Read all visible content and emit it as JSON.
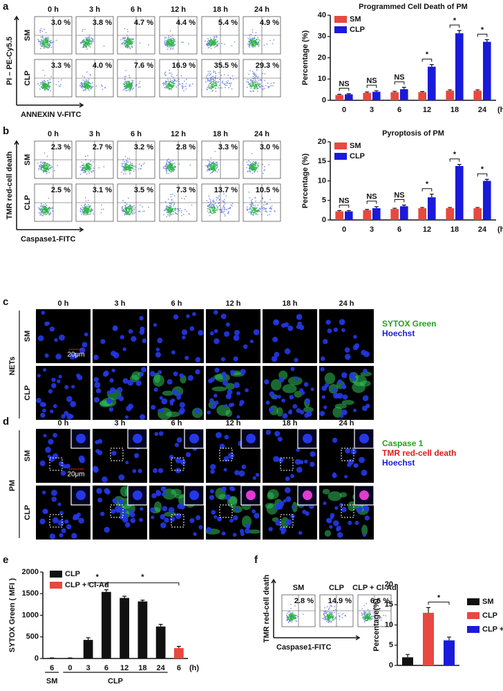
{
  "panels": {
    "a": {
      "letter": "a",
      "times": [
        "0 h",
        "3 h",
        "6 h",
        "12 h",
        "18 h",
        "24 h"
      ],
      "rows": [
        "SM",
        "CLP"
      ],
      "percents": [
        [
          "3.0 %",
          "3.8 %",
          "4.7 %",
          "4.4 %",
          "5.4 %",
          "4.9 %"
        ],
        [
          "3.3 %",
          "4.0 %",
          "7.6 %",
          "16.9 %",
          "35.5 %",
          "29.3 %"
        ]
      ],
      "y_axis": "PI – PE-Cy5.5",
      "x_axis": "ANNEXIN V-FITC"
    },
    "b": {
      "letter": "b",
      "times": [
        "0 h",
        "3 h",
        "6 h",
        "12 h",
        "18 h",
        "24 h"
      ],
      "rows": [
        "SM",
        "CLP"
      ],
      "percents": [
        [
          "2.3 %",
          "2.7 %",
          "3.2 %",
          "2.8 %",
          "3.3 %",
          "3.0 %"
        ],
        [
          "2.5 %",
          "3.1 %",
          "3.5 %",
          "7.3 %",
          "13.7 %",
          "10.5 %"
        ]
      ],
      "y_axis": "TMR red-cell death",
      "x_axis": "Caspase1-FITC"
    },
    "c": {
      "letter": "c",
      "times": [
        "0 h",
        "3 h",
        "6 h",
        "12 h",
        "18 h",
        "24 h"
      ],
      "rows": [
        "SM",
        "CLP"
      ],
      "side": "NETs",
      "scale": "20μm",
      "legend": [
        {
          "text": "SYTOX Green",
          "color": "#1fa51f"
        },
        {
          "text": "Hoechst",
          "color": "#1a1adb"
        }
      ]
    },
    "d": {
      "letter": "d",
      "times": [
        "0 h",
        "3 h",
        "6 h",
        "12 h",
        "18 h",
        "24 h"
      ],
      "rows": [
        "SM",
        "CLP"
      ],
      "side": "PM",
      "scale": "20μm",
      "legend": [
        {
          "text": "Caspase 1",
          "color": "#1fa51f"
        },
        {
          "text": "TMR red-cell death",
          "color": "#e01b1b"
        },
        {
          "text": "Hoechst",
          "color": "#1a1adb"
        }
      ]
    },
    "e": {
      "letter": "e",
      "groups": [
        "SM",
        "CLP"
      ]
    },
    "f": {
      "letter": "f",
      "labels": [
        "SM",
        "CLP",
        "CLP + Cl-Ad"
      ],
      "percents": [
        "2.8 %",
        "14.9 %",
        "6.6 %"
      ],
      "y_axis": "TMR red-cell death",
      "x_axis": "Caspase1-FITC"
    }
  },
  "chart_data": [
    {
      "type": "bar",
      "title": "Programmed Cell Death of PM",
      "y_label": "Percentage (%)",
      "x_unit": "(h)",
      "categories": [
        "0",
        "3",
        "6",
        "12",
        "18",
        "24"
      ],
      "ylim": [
        0,
        40
      ],
      "yticks": [
        0,
        10,
        20,
        30,
        40
      ],
      "series": [
        {
          "name": "SM",
          "color": "#e8483f",
          "values": [
            2.5,
            3.5,
            3.8,
            3.8,
            4.5,
            4.5
          ],
          "errors": [
            0.3,
            0.4,
            0.4,
            0.3,
            0.4,
            0.4
          ]
        },
        {
          "name": "CLP",
          "color": "#1a1adb",
          "values": [
            2.8,
            4.0,
            5.2,
            15.8,
            31.5,
            27.5
          ],
          "errors": [
            0.3,
            0.5,
            0.9,
            1.0,
            1.3,
            1.0
          ]
        }
      ],
      "annotations": [
        "NS",
        "NS",
        "NS",
        "*",
        "*",
        "*"
      ]
    },
    {
      "type": "bar",
      "title": "Pyroptosis of PM",
      "y_label": "Percentage (%)",
      "x_unit": "(h)",
      "categories": [
        "0",
        "3",
        "6",
        "12",
        "18",
        "24"
      ],
      "ylim": [
        0,
        20
      ],
      "yticks": [
        0,
        5,
        10,
        15,
        20
      ],
      "series": [
        {
          "name": "SM",
          "color": "#e8483f",
          "values": [
            2.2,
            2.5,
            2.8,
            3.0,
            3.0,
            3.0
          ],
          "errors": [
            0.2,
            0.2,
            0.2,
            0.2,
            0.2,
            0.2
          ]
        },
        {
          "name": "CLP",
          "color": "#1a1adb",
          "values": [
            2.2,
            3.0,
            3.5,
            5.8,
            13.8,
            10.0
          ],
          "errors": [
            0.2,
            0.4,
            0.3,
            0.8,
            0.4,
            0.4
          ]
        }
      ],
      "annotations": [
        "NS",
        "NS",
        "NS",
        "*",
        "*",
        "*"
      ]
    },
    {
      "type": "bar",
      "y_label": "SYTOX Green ( MFI )",
      "x_unit": "(h)",
      "categories": [
        "6",
        "0",
        "3",
        "6",
        "12",
        "18",
        "24",
        "6"
      ],
      "ylim": [
        0,
        2000
      ],
      "yticks": [
        0,
        500,
        1000,
        1500,
        2000
      ],
      "series": [
        {
          "name": "CLP",
          "color": "#111111",
          "values": [
            10,
            10,
            430,
            1540,
            1400,
            1320,
            740,
            null
          ],
          "errors": [
            5,
            5,
            50,
            50,
            40,
            30,
            50,
            null
          ]
        },
        {
          "name": "CLP + Cl-Ad",
          "color": "#e8483f",
          "values": [
            null,
            null,
            null,
            null,
            null,
            null,
            null,
            240
          ],
          "errors": [
            null,
            null,
            null,
            null,
            null,
            null,
            null,
            40
          ]
        }
      ],
      "annotations": [
        "*",
        "*"
      ]
    },
    {
      "type": "bar",
      "y_label": "Percentage(%)",
      "ylim": [
        0,
        20
      ],
      "yticks": [
        0,
        5,
        10,
        15,
        20
      ],
      "series": [
        {
          "name": "SM",
          "color": "#111111",
          "values": [
            2.0
          ],
          "errors": [
            0.7
          ]
        },
        {
          "name": "CLP",
          "color": "#e8483f",
          "values": [
            13.0
          ],
          "errors": [
            1.3
          ]
        },
        {
          "name": "CLP + Cl-Ad",
          "color": "#1a1adb",
          "values": [
            6.2
          ],
          "errors": [
            0.8
          ]
        }
      ],
      "annotations": [
        "*"
      ]
    }
  ]
}
